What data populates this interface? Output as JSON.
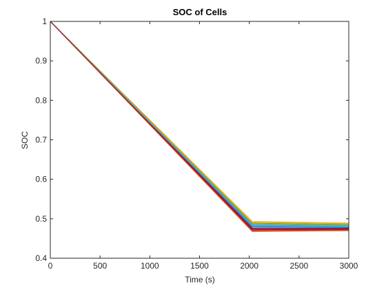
{
  "chart_data": {
    "type": "line",
    "title": "SOC of Cells",
    "xlabel": "Time (s)",
    "ylabel": "SOC",
    "x": [
      0,
      2030,
      3000
    ],
    "series": [
      {
        "color": "#0072BD",
        "values": [
          1,
          0.48,
          0.478
        ]
      },
      {
        "color": "#D95319",
        "values": [
          1,
          0.47,
          0.472
        ]
      },
      {
        "color": "#EDB120",
        "values": [
          1,
          0.493,
          0.489
        ]
      },
      {
        "color": "#7E2F8E",
        "values": [
          1,
          0.475,
          0.474
        ]
      },
      {
        "color": "#77AC30",
        "values": [
          1,
          0.489,
          0.486
        ]
      },
      {
        "color": "#4DBEEE",
        "values": [
          1,
          0.485,
          0.483
        ]
      },
      {
        "color": "#A2142F",
        "values": [
          1,
          0.472,
          0.473
        ]
      },
      {
        "color": "#0072BD",
        "values": [
          1,
          0.483,
          0.481
        ]
      },
      {
        "color": "#D95319",
        "values": [
          1,
          0.468,
          0.47
        ]
      },
      {
        "color": "#EDB120",
        "values": [
          1,
          0.491,
          0.488
        ]
      },
      {
        "color": "#7E2F8E",
        "values": [
          1,
          0.477,
          0.476
        ]
      },
      {
        "color": "#77AC30",
        "values": [
          1,
          0.487,
          0.484
        ]
      },
      {
        "color": "#4DBEEE",
        "values": [
          1,
          0.482,
          0.48
        ]
      },
      {
        "color": "#A2142F",
        "values": [
          1,
          0.474,
          0.475
        ]
      }
    ],
    "xlim": [
      0,
      3000
    ],
    "xticks": [
      0,
      500,
      1000,
      1500,
      2000,
      2500,
      3000
    ],
    "ylim": [
      0.4,
      1
    ],
    "yticks": [
      0.4,
      0.5,
      0.6,
      0.7,
      0.8,
      0.9,
      1
    ]
  }
}
